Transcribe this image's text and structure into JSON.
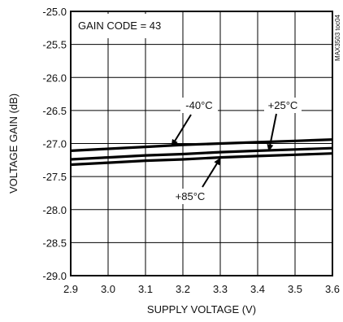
{
  "chart_data": {
    "type": "line",
    "xlabel": "SUPPLY VOLTAGE (V)",
    "ylabel": "VOLTAGE GAIN (dB)",
    "xlim": [
      2.9,
      3.6
    ],
    "ylim": [
      -29.0,
      -25.0
    ],
    "x_ticks": [
      "2.9",
      "3.0",
      "3.1",
      "3.2",
      "3.3",
      "3.4",
      "3.5",
      "3.6"
    ],
    "y_ticks": [
      "-25.0",
      "-25.5",
      "-26.0",
      "-26.5",
      "-27.0",
      "-27.5",
      "-28.0",
      "-28.5",
      "-29.0"
    ],
    "grid": true,
    "annotation_box": "GAIN CODE = 43",
    "watermark": "MAX3503 toc04",
    "x": [
      2.9,
      3.0,
      3.1,
      3.2,
      3.3,
      3.4,
      3.5,
      3.6
    ],
    "series": [
      {
        "name": "-40°C",
        "values": [
          -27.11,
          -27.08,
          -27.05,
          -27.02,
          -27.0,
          -26.98,
          -26.96,
          -26.94
        ]
      },
      {
        "name": "+25°C",
        "values": [
          -27.24,
          -27.21,
          -27.18,
          -27.16,
          -27.13,
          -27.11,
          -27.09,
          -27.07
        ]
      },
      {
        "name": "+85°C",
        "values": [
          -27.32,
          -27.29,
          -27.26,
          -27.24,
          -27.21,
          -27.19,
          -27.17,
          -27.15
        ]
      }
    ],
    "series_labels": [
      "-40°C",
      "+25°C",
      "+85°C"
    ]
  }
}
